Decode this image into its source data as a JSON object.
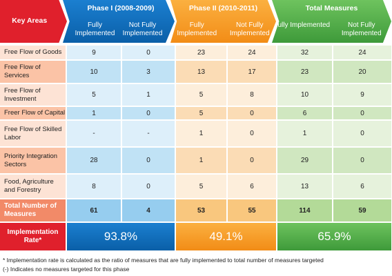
{
  "header": {
    "key_areas": "Key Areas",
    "phase1": {
      "title": "Phase I (2008-2009)",
      "fully": "Fully Implemented",
      "not_fully": "Not Fully Implemented"
    },
    "phase2": {
      "title": "Phase II (2010-2011)",
      "fully": "Fully Implemented",
      "not_fully": "Not Fully Implemented"
    },
    "total": {
      "title": "Total Measures",
      "fully": "Fully Implemented",
      "not_fully": "Not Fully Implemented"
    }
  },
  "rows": [
    {
      "label": "Free Flow of Goods",
      "values": [
        "9",
        "0",
        "23",
        "24",
        "32",
        "24"
      ]
    },
    {
      "label": "Free Flow of Services",
      "values": [
        "10",
        "3",
        "13",
        "17",
        "23",
        "20"
      ]
    },
    {
      "label": "Free Flow of Investment",
      "values": [
        "5",
        "1",
        "5",
        "8",
        "10",
        "9"
      ]
    },
    {
      "label": "Freer Flow of Capital",
      "values": [
        "1",
        "0",
        "5",
        "0",
        "6",
        "0"
      ]
    },
    {
      "label": "Free Flow of Skilled Labor",
      "values": [
        "-",
        "-",
        "1",
        "0",
        "1",
        "0"
      ]
    },
    {
      "label": "Priority Integration Sectors",
      "values": [
        "28",
        "0",
        "1",
        "0",
        "29",
        "0"
      ]
    },
    {
      "label": "Food, Agriculture and Forestry",
      "values": [
        "8",
        "0",
        "5",
        "6",
        "13",
        "6"
      ]
    }
  ],
  "total_row": {
    "label": "Total Number of Measures",
    "values": [
      "61",
      "4",
      "53",
      "55",
      "114",
      "59"
    ]
  },
  "rate_row": {
    "label": "Implementation Rate*",
    "phase1": "93.8%",
    "phase2": "49.1%",
    "total": "65.9%"
  },
  "footnotes": [
    "* Implementation rate is calculated as the ratio of measures that are fully implemented to total number of measures targeted",
    "(-) Indicates no measures targeted for this phase"
  ]
}
